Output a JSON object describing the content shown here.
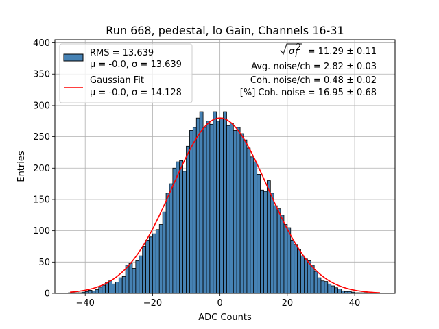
{
  "chart_data": {
    "type": "bar",
    "title": "Run 668, pedestal, lo Gain, Channels 16-31",
    "xlabel": "ADC Counts",
    "ylabel": "Entries",
    "xlim": [
      -49,
      52
    ],
    "ylim": [
      0,
      405
    ],
    "xticks": [
      -40,
      -20,
      0,
      20,
      40
    ],
    "yticks": [
      0,
      50,
      100,
      150,
      200,
      250,
      300,
      350,
      400
    ],
    "grid": true,
    "bin_width": 1,
    "colors": {
      "bars": "#4682b4",
      "bar_edge": "#000000",
      "fit": "#ff0000",
      "grid": "#b0b0b0"
    },
    "histogram": {
      "bin_left_edges": [
        -45,
        -44,
        -43,
        -42,
        -41,
        -40,
        -39,
        -38,
        -37,
        -36,
        -35,
        -34,
        -33,
        -32,
        -31,
        -30,
        -29,
        -28,
        -27,
        -26,
        -25,
        -24,
        -23,
        -22,
        -21,
        -20,
        -19,
        -18,
        -17,
        -16,
        -15,
        -14,
        -13,
        -12,
        -11,
        -10,
        -9,
        -8,
        -7,
        -6,
        -5,
        -4,
        -3,
        -2,
        -1,
        0,
        1,
        2,
        3,
        4,
        5,
        6,
        7,
        8,
        9,
        10,
        11,
        12,
        13,
        14,
        15,
        16,
        17,
        18,
        19,
        20,
        21,
        22,
        23,
        24,
        25,
        26,
        27,
        28,
        29,
        30,
        31,
        32,
        33,
        34,
        35,
        36,
        37,
        38,
        39,
        40,
        41,
        42,
        43,
        44,
        45,
        46,
        47
      ],
      "counts": [
        1,
        1,
        1,
        1,
        2,
        3,
        5,
        4,
        6,
        10,
        13,
        18,
        20,
        15,
        18,
        25,
        27,
        45,
        48,
        40,
        52,
        60,
        75,
        85,
        90,
        95,
        102,
        110,
        130,
        160,
        175,
        200,
        210,
        212,
        195,
        235,
        260,
        265,
        280,
        290,
        265,
        275,
        270,
        290,
        275,
        280,
        290,
        268,
        272,
        260,
        265,
        255,
        245,
        232,
        218,
        210,
        190,
        165,
        163,
        180,
        160,
        140,
        135,
        125,
        110,
        105,
        85,
        78,
        70,
        60,
        55,
        52,
        45,
        35,
        25,
        20,
        19,
        15,
        12,
        9,
        7,
        4,
        3,
        3,
        2,
        1,
        1,
        1,
        1,
        0,
        0,
        0,
        0
      ]
    },
    "gaussian_fit": {
      "mu": 0.0,
      "sigma": 14.128,
      "amplitude": 280,
      "x_range": [
        -44.5,
        47.5
      ]
    },
    "legend": {
      "placement": "upper-left",
      "entries": [
        {
          "label_line1": "RMS = 13.639",
          "label_line2": "μ = -0.0, σ = 13.639"
        },
        {
          "label_line1": "Gaussian Fit",
          "label_line2": "μ = -0.0, σ = 14.128"
        }
      ]
    },
    "annotations": {
      "sigma_line_value": " = 11.29 ± 0.11",
      "lines": [
        "Avg. noise/ch = 2.82 ± 0.03",
        "Coh. noise/ch = 0.48 ± 0.02",
        "[%] Coh. noise = 16.95 ± 0.68"
      ]
    }
  }
}
